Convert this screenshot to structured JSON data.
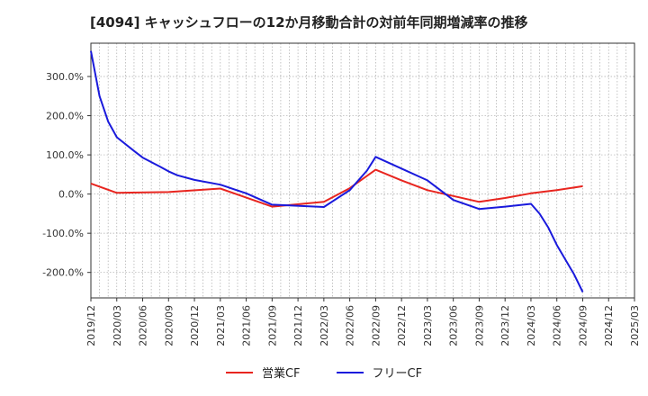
{
  "title": "[4094]  キャッシュフローの12か月移動合計の対前年同期増減率の推移",
  "colors": {
    "operating": "#e8251f",
    "free": "#1a1adc",
    "grid": "#aaaaaa",
    "axis": "#333333"
  },
  "legend": {
    "operating_label": "営業CF",
    "free_label": "フリーCF"
  },
  "chart_data": {
    "type": "line",
    "title": "[4094]  キャッシュフローの12か月移動合計の対前年同期増減率の推移",
    "xlabel": "",
    "ylabel": "",
    "ylim": [
      -265,
      385
    ],
    "yticks": [
      300,
      200,
      100,
      0,
      -100,
      -200
    ],
    "ytick_labels": [
      "300.0%",
      "200.0%",
      "100.0%",
      "0.0%",
      "-100.0%",
      "-200.0%"
    ],
    "x_tick_labels": [
      "2019/12",
      "2020/03",
      "2020/06",
      "2020/09",
      "2020/12",
      "2021/03",
      "2021/06",
      "2021/09",
      "2021/12",
      "2022/03",
      "2022/06",
      "2022/09",
      "2022/12",
      "2023/03",
      "2023/06",
      "2023/09",
      "2023/12",
      "2024/03",
      "2024/06",
      "2024/09",
      "2024/12",
      "2025/03"
    ],
    "x_start": "2019/12",
    "grid": true,
    "legend_position": "bottom",
    "series": [
      {
        "name": "営業CF",
        "color": "#e8251f",
        "points": [
          [
            "2019/12",
            27
          ],
          [
            "2020/03",
            3
          ],
          [
            "2020/09",
            5
          ],
          [
            "2021/03",
            14
          ],
          [
            "2021/09",
            -32
          ],
          [
            "2022/03",
            -20
          ],
          [
            "2022/06",
            15
          ],
          [
            "2022/09",
            62
          ],
          [
            "2022/12",
            35
          ],
          [
            "2023/03",
            10
          ],
          [
            "2023/06",
            -5
          ],
          [
            "2023/09",
            -20
          ],
          [
            "2023/12",
            -10
          ],
          [
            "2024/03",
            2
          ],
          [
            "2024/06",
            10
          ],
          [
            "2024/09",
            20
          ]
        ]
      },
      {
        "name": "フリーCF",
        "color": "#1a1adc",
        "points": [
          [
            "2019/12",
            365
          ],
          [
            "2020/01",
            250
          ],
          [
            "2020/02",
            185
          ],
          [
            "2020/03",
            145
          ],
          [
            "2020/05",
            110
          ],
          [
            "2020/06",
            93
          ],
          [
            "2020/08",
            70
          ],
          [
            "2020/09",
            58
          ],
          [
            "2020/10",
            48
          ],
          [
            "2020/12",
            36
          ],
          [
            "2021/03",
            24
          ],
          [
            "2021/06",
            2
          ],
          [
            "2021/09",
            -27
          ],
          [
            "2022/03",
            -33
          ],
          [
            "2022/06",
            10
          ],
          [
            "2022/08",
            60
          ],
          [
            "2022/09",
            95
          ],
          [
            "2022/12",
            65
          ],
          [
            "2023/03",
            35
          ],
          [
            "2023/06",
            -15
          ],
          [
            "2023/09",
            -38
          ],
          [
            "2023/12",
            -32
          ],
          [
            "2024/03",
            -25
          ],
          [
            "2024/04",
            -50
          ],
          [
            "2024/05",
            -85
          ],
          [
            "2024/06",
            -130
          ],
          [
            "2024/08",
            -205
          ],
          [
            "2024/09",
            -250
          ]
        ]
      }
    ]
  }
}
